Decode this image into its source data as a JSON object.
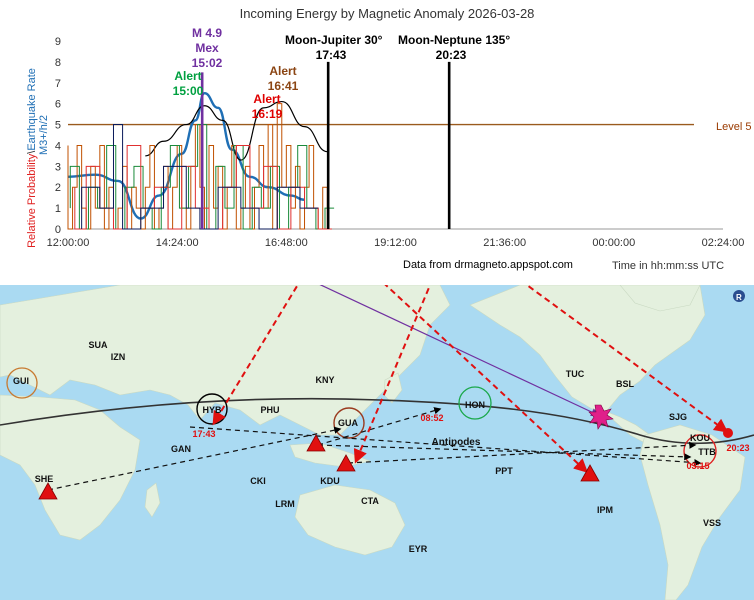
{
  "chart_data": {
    "type": "line",
    "title": "Incoming Energy by Magnetic Anomaly 2026-03-28",
    "ylabel_parts": [
      "Relative Probability",
      "\\",
      "Earthquake Rate"
    ],
    "ylabel2": "M3+/h/2",
    "xlabel": "Time in hh:mm:ss UTC",
    "source": "Data from drmagneto.appspot.com",
    "ylim": [
      0,
      9
    ],
    "yticks": [
      "0",
      "1",
      "2",
      "3",
      "4",
      "5",
      "6",
      "7",
      "8",
      "9"
    ],
    "xticks": [
      "12:00:00",
      "14:24:00",
      "16:48:00",
      "19:12:00",
      "21:36:00",
      "00:00:00",
      "02:24:00"
    ],
    "xlim_hours": [
      12,
      26.4
    ],
    "level_line": {
      "label": "Level 5",
      "value": 5,
      "color": "#9a5a1e"
    },
    "events": [
      {
        "time_h": 14.95,
        "label": "M 4.9",
        "sub": "Mex",
        "time": "15:02",
        "color": "#7030a0"
      },
      {
        "time_h": 17.72,
        "label": "Moon-Jupiter 30°",
        "time": "17:43",
        "color": "#000000"
      },
      {
        "time_h": 20.38,
        "label": "Moon-Neptune 135°",
        "time": "20:23",
        "color": "#000000"
      }
    ],
    "alerts": [
      {
        "label": "Alert",
        "time": "15:00",
        "color": "#00a040"
      },
      {
        "label": "Alert",
        "time": "16:41",
        "color": "#8b4513"
      },
      {
        "label": "Alert",
        "time": "16:19",
        "color": "#e00000"
      }
    ],
    "series": [
      {
        "color": "#1f6fb5",
        "x": [
          12.0,
          12.6,
          13.1,
          13.6,
          14.0,
          14.5,
          14.8,
          15.0,
          15.3,
          15.6,
          16.0,
          16.4,
          16.9,
          17.2
        ],
        "values": [
          2.5,
          2.6,
          2.3,
          0.5,
          1.6,
          3.6,
          5.2,
          6.5,
          5.8,
          3.8,
          2.5,
          2.0,
          1.6,
          1.4
        ]
      },
      {
        "color": "#000000",
        "x": [
          13.7,
          14.1,
          14.6,
          15.0,
          15.4,
          15.8,
          16.3,
          16.7,
          17.2,
          17.7
        ],
        "values": [
          3.5,
          4.2,
          5.0,
          5.9,
          5.2,
          3.3,
          5.8,
          6.1,
          4.9,
          3.7
        ]
      },
      {
        "color": "#c05000",
        "x": [
          12.0,
          12.1,
          12.2,
          12.3,
          12.4,
          12.5,
          12.6,
          12.7,
          12.8,
          12.9,
          13.0,
          13.1,
          13.2,
          13.3,
          13.4,
          13.5,
          13.6,
          13.7,
          13.8,
          13.9,
          14.0,
          14.1,
          14.2,
          14.3,
          14.4,
          14.5,
          14.6,
          14.7,
          14.8,
          14.9,
          15.0,
          15.1,
          15.2,
          15.3,
          15.4,
          15.5,
          15.6,
          15.7,
          15.8,
          15.9,
          16.0,
          16.1,
          16.2,
          16.3,
          16.4,
          16.5,
          16.6,
          16.7,
          16.8,
          16.9,
          17.0,
          17.1,
          17.2,
          17.3,
          17.4,
          17.5,
          17.6,
          17.7,
          17.8
        ],
        "values": [
          4,
          0,
          2,
          4,
          1,
          0,
          3,
          1,
          4,
          0,
          2,
          0,
          1,
          3,
          0,
          2,
          1,
          0,
          2,
          4,
          0,
          1,
          3,
          0,
          2,
          4,
          1,
          0,
          3,
          5,
          2,
          0,
          4,
          1,
          3,
          0,
          2,
          4,
          0,
          1,
          3,
          0,
          2,
          4,
          1,
          5,
          0,
          6,
          2,
          4,
          1,
          3,
          0,
          2,
          4,
          1,
          0,
          2,
          0
        ]
      },
      {
        "color": "#1a8a3a",
        "x": [
          12.05,
          12.25,
          12.45,
          12.65,
          12.85,
          13.05,
          13.25,
          13.45,
          13.65,
          13.85,
          14.05,
          14.25,
          14.45,
          14.65,
          14.85,
          15.05,
          15.25,
          15.45,
          15.65,
          15.85,
          16.05,
          16.25,
          16.45,
          16.65,
          16.85,
          17.05,
          17.25,
          17.45,
          17.65,
          17.85
        ],
        "values": [
          1,
          3,
          0,
          2,
          1,
          4,
          0,
          2,
          3,
          1,
          0,
          2,
          4,
          1,
          3,
          5,
          0,
          3,
          1,
          4,
          0,
          2,
          1,
          3,
          0,
          2,
          4,
          1,
          0,
          1
        ]
      },
      {
        "color": "#e03030",
        "x": [
          12.15,
          12.4,
          12.7,
          13.0,
          13.3,
          13.6,
          13.9,
          14.2,
          14.5,
          14.8,
          15.1,
          15.4,
          15.7,
          16.0,
          16.3,
          16.6,
          16.9,
          17.2,
          17.5,
          17.8
        ],
        "values": [
          2,
          0,
          3,
          1,
          0,
          4,
          1,
          2,
          0,
          3,
          1,
          0,
          2,
          4,
          1,
          3,
          0,
          2,
          1,
          0
        ]
      },
      {
        "color": "#0a1a5a",
        "x": [
          12.3,
          12.7,
          13.0,
          13.2,
          13.6,
          14.1,
          14.6,
          14.9,
          15.3,
          15.8,
          16.2,
          16.6,
          17.1,
          17.5
        ],
        "values": [
          0,
          2,
          1,
          5,
          0,
          1,
          3,
          1,
          0,
          2,
          1,
          0,
          2,
          1
        ]
      }
    ]
  },
  "map": {
    "station_labels": [
      "SUA",
      "IZN",
      "KNY",
      "TUC",
      "BSL",
      "SJG",
      "GUI",
      "HYB",
      "PHU",
      "GUA",
      "HON",
      "GAN",
      "CKI",
      "KDU",
      "LRM",
      "CTA",
      "EYR",
      "PPT",
      "IPM",
      "KOU",
      "TTB",
      "VSS",
      "SHE"
    ],
    "time_labels": [
      "17:43",
      "08:52",
      "03:15",
      "20:23"
    ],
    "antipodes_label": "Antipodes"
  }
}
